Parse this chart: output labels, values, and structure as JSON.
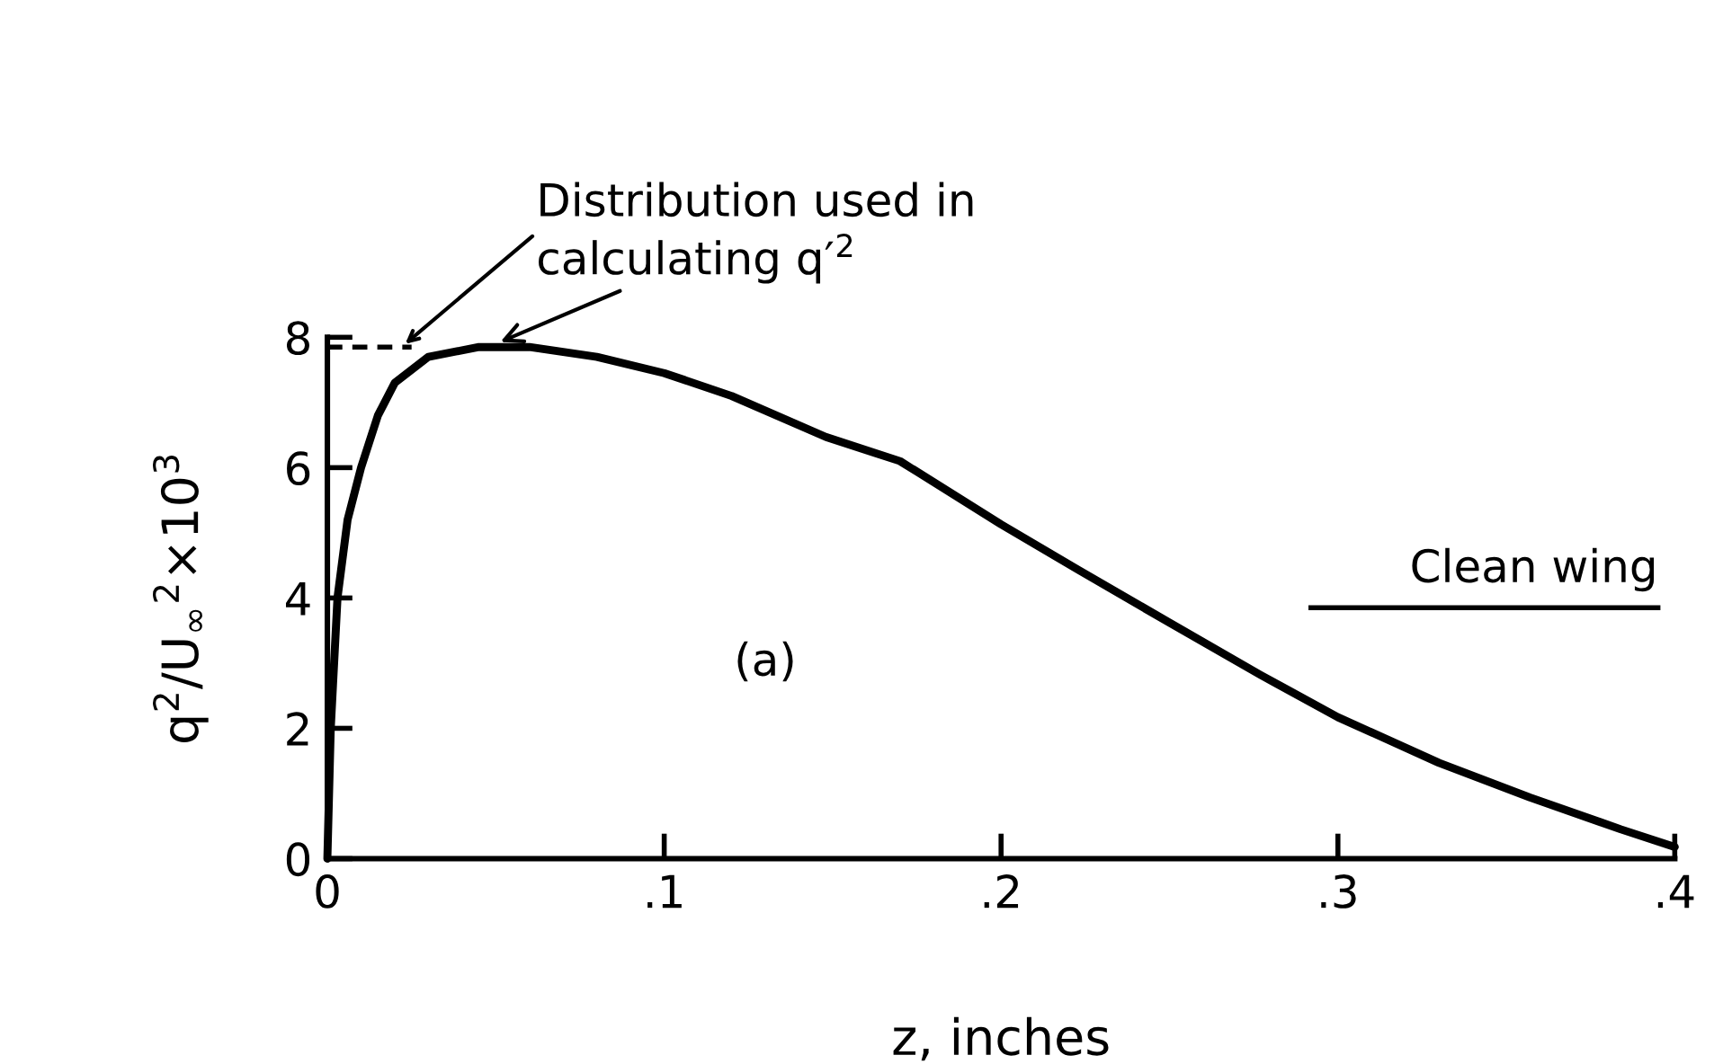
{
  "chart_data": {
    "type": "line",
    "xlabel": "z, inches",
    "ylabel": "q$^{2}$/U$_{∞}$$^{2}$×10$^{3}$",
    "series": [
      {
        "color": "#000000",
        "line_style": "solid",
        "x": [
          0,
          0.001,
          0.003,
          0.006,
          0.01,
          0.015,
          0.02,
          0.03,
          0.045,
          0.06,
          0.08,
          0.1,
          0.12,
          0.148,
          0.17,
          0.2,
          0.223,
          0.25,
          0.277,
          0.3,
          0.33,
          0.357,
          0.384,
          0.4
        ],
        "values": [
          0,
          2,
          4,
          5.2,
          6,
          6.8,
          7.3,
          7.7,
          7.85,
          7.85,
          7.7,
          7.45,
          7.1,
          6.47,
          6.1,
          5.13,
          4.43,
          3.62,
          2.82,
          2.17,
          1.47,
          0.94,
          0.45,
          0.18
        ]
      },
      {
        "color": "#000000",
        "line_style": "dashed",
        "x": [
          0,
          0.025
        ],
        "values": [
          7.85,
          7.85
        ]
      }
    ],
    "annotations": [
      {
        "text": "Distribution used in\ncalculating q′$^{2}$",
        "x": 0.05,
        "y": 7.9
      },
      "(a)",
      "Clean wing"
    ],
    "xlim": [
      0,
      0.4
    ],
    "ylim": [
      0,
      8
    ],
    "xticks": [
      0,
      {
        "value": 0.1,
        "label": ".1"
      },
      {
        "value": 0.2,
        "label": ".2"
      },
      {
        "value": 0.3,
        "label": ".3"
      },
      {
        "value": 0.4,
        "label": ".4"
      }
    ],
    "yticks": [
      0,
      2,
      4,
      6,
      8
    ],
    "grid": false,
    "legend": false
  }
}
